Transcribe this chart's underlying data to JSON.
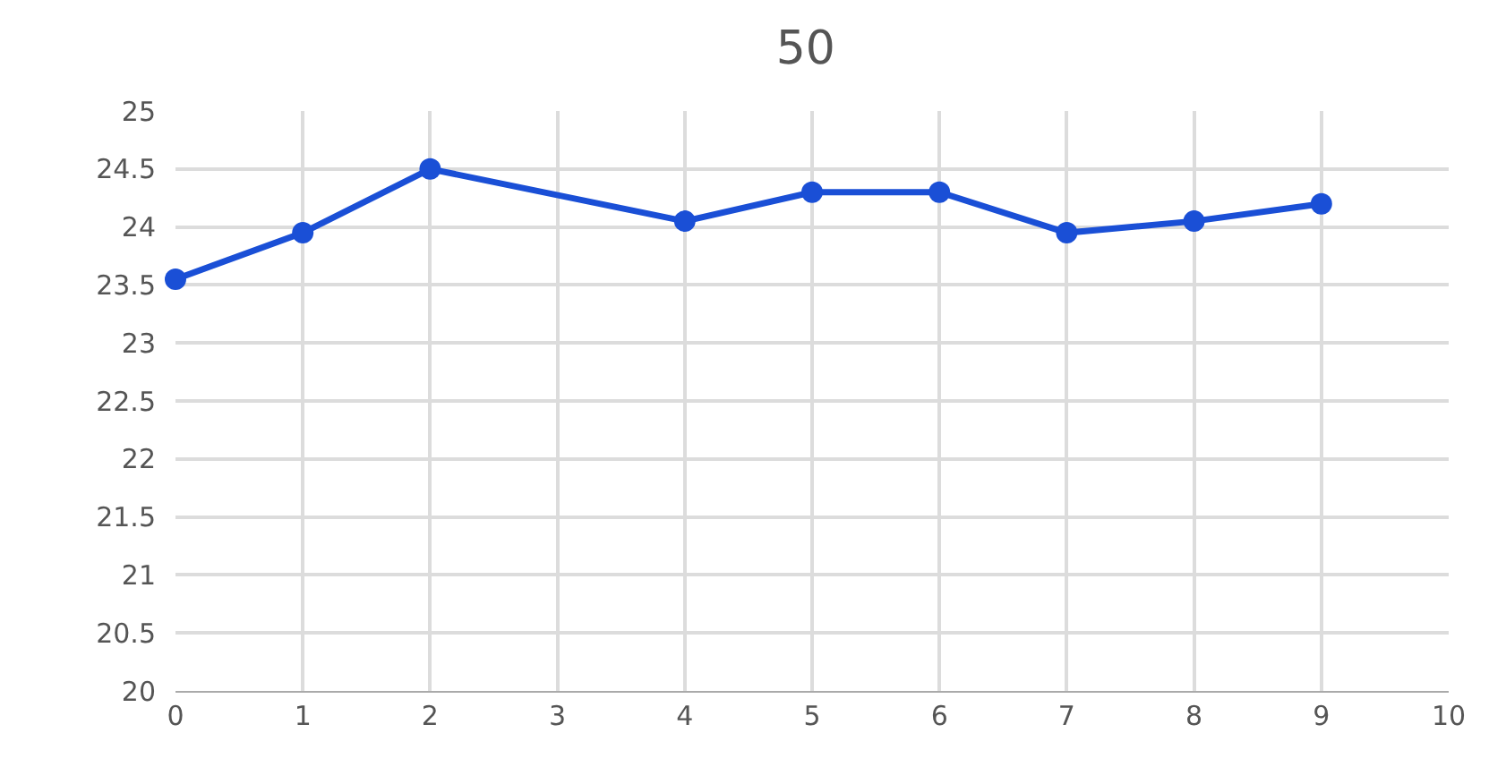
{
  "chart_data": {
    "type": "line",
    "title": "50",
    "x": [
      0,
      1,
      2,
      4,
      5,
      6,
      7,
      8,
      9
    ],
    "series": [
      {
        "color": "#1a4fd6",
        "values": [
          23.55,
          23.95,
          24.5,
          24.05,
          24.3,
          24.3,
          23.95,
          24.05,
          24.2
        ]
      }
    ],
    "xlim": [
      0,
      10
    ],
    "xticks": [
      0,
      1,
      2,
      3,
      4,
      5,
      6,
      7,
      8,
      9,
      10
    ],
    "ylim": [
      20,
      25
    ],
    "yticks": [
      20,
      20.5,
      21,
      21.5,
      22,
      22.5,
      23,
      23.5,
      24,
      24.5,
      25
    ],
    "grid": true,
    "marker": "circle",
    "line_style": "solid"
  }
}
